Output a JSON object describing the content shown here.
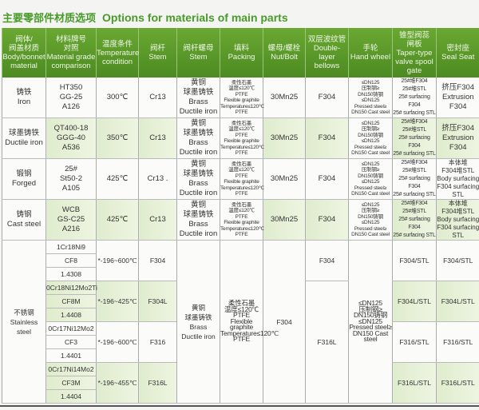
{
  "title_cn": "主要零部件材质选项",
  "title_en": "Options for materials of main parts",
  "colors": {
    "header": "#5a9a2a",
    "title": "#4a9a2a",
    "alt_row": "#e4efd4"
  },
  "headers": [
    "阀体/\n阀盖材质\nBody/bonnet\nmaterial",
    "材料牌号\n对照\nMaterial grade\ncomparison",
    "温度条件\nTemperature\ncondition",
    "阀杆\nStem",
    "阀杆螺母\nStem",
    "填料\nPacking",
    "螺母/螺栓\nNut/Bolt",
    "双层波纹管\nDouble-layer\nbellows",
    "手轮\nHand wheel",
    "锥型阀蕊\n闸板\nTaper-type\nvalve spool\ngate",
    "密封座\nSeal Seat"
  ],
  "common": {
    "stem_nut": "黄铜\n球墨铸铁\nBrass\nDuctile iron",
    "packing": "柔性石墨\n温度≤120℃\nPTFE\nFlexible graphite\nTemperature≤120℃\nPTFE",
    "nut": "30Mn25",
    "bellows": "F304",
    "handwheel": "≤DN125\n压制钢≥\nDN150铸钢\n≤DN125\nPressed steel≥\nDN150 Cast steel",
    "taper": "25#堆F304\n25#堆STL\n25# surfacing F304\n25# surfacing STL"
  },
  "rows": [
    {
      "body": "铸铁\nIron",
      "grades": "HT350\nGG-25\nA126",
      "temp": "300℃",
      "stem": "Cr13",
      "seal": "挤压F304\nExtrusion\nF304"
    },
    {
      "body": "球墨铸铁\nDuctile iron",
      "grades": "QT400-18\nGGG-40\nA536",
      "temp": "350℃",
      "stem": "Cr13",
      "seal": "挤压F304\nExtrusion\nF304"
    },
    {
      "body": "锻钢\nForged",
      "grades": "25#\nSt50-2\nA105",
      "temp": "425℃",
      "stem": "Cr13 .",
      "seal": "本体堆\nF304堆STL\nBody surfacing\nF304 surfacing STL"
    },
    {
      "body": "铸钢\nCast steel",
      "grades": "WCB\nGS-C25\nA216",
      "temp": "425℃",
      "stem": "Cr13",
      "seal": "本体堆\nF304堆STL\nBody surfacing\nF304 surfacing STL"
    }
  ],
  "stainless": {
    "body": "不锈钢\nStainless\nsteel",
    "nut": "F304",
    "bellows": [
      "F304",
      "F316L"
    ],
    "groups": [
      {
        "grades": [
          "1Cr18Ni9",
          "CF8",
          "1.4308"
        ],
        "temp": "*-196~600℃",
        "stem": "F304",
        "taper": "F304/STL",
        "seal": "F304/STL"
      },
      {
        "grades": [
          "0Cr18Ni12Mo2Ti",
          "CF8M",
          "1.4408"
        ],
        "temp": "*-196~425℃",
        "stem": "F304L",
        "taper": "F304L/STL",
        "seal": "F304L/STL"
      },
      {
        "grades": [
          "0Cr17Ni12Mo2",
          "CF3",
          "1.4401"
        ],
        "temp": "*-196~600℃",
        "stem": "F316",
        "taper": "F316/STL",
        "seal": "F316/STL"
      },
      {
        "grades": [
          "0Cr17Ni14Mo2",
          "CF3M",
          "1.4404"
        ],
        "temp": "*-196~455℃",
        "stem": "F316L",
        "taper": "F316L/STL",
        "seal": "F316L/STL"
      }
    ]
  }
}
